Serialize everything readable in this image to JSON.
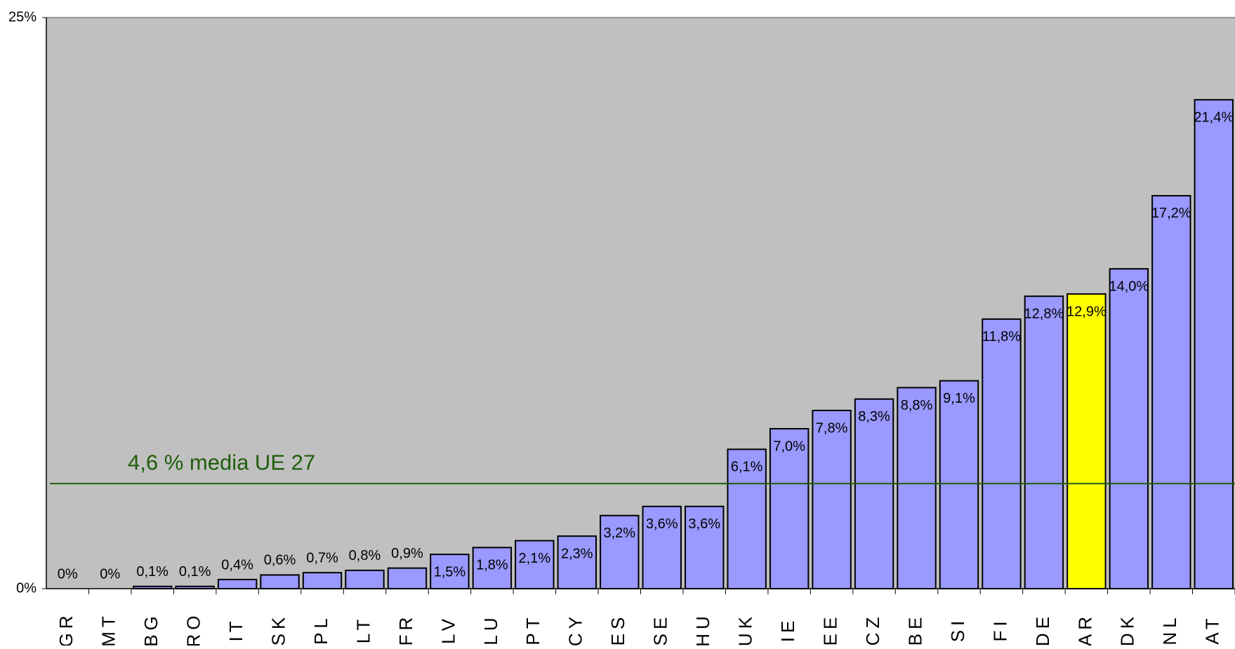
{
  "chart_data": {
    "type": "bar",
    "categories": [
      "GR",
      "MT",
      "BG",
      "RO",
      "IT",
      "SK",
      "PL",
      "LT",
      "FR",
      "LV",
      "LU",
      "PT",
      "CY",
      "ES",
      "SE",
      "HU",
      "UK",
      "IE",
      "EE",
      "CZ",
      "BE",
      "SI",
      "FI",
      "DE",
      "AR",
      "DK",
      "NL",
      "AT"
    ],
    "values": [
      0,
      0,
      0.1,
      0.1,
      0.4,
      0.6,
      0.7,
      0.8,
      0.9,
      1.5,
      1.8,
      2.1,
      2.3,
      3.2,
      3.6,
      3.6,
      6.1,
      7.0,
      7.8,
      8.3,
      8.8,
      9.1,
      11.8,
      12.8,
      12.9,
      14.0,
      17.2,
      21.4
    ],
    "value_labels": [
      "0%",
      "0%",
      "0,1%",
      "0,1%",
      "0,4%",
      "0,6%",
      "0,7%",
      "0,8%",
      "0,9%",
      "1,5%",
      "1,8%",
      "2,1%",
      "2,3%",
      "3,2%",
      "3,6%",
      "3,6%",
      "6,1%",
      "7,0%",
      "7,8%",
      "8,3%",
      "8,8%",
      "9,1%",
      "11,8%",
      "12,8%",
      "12,9%",
      "14,0%",
      "17,2%",
      "21,4%"
    ],
    "colors": [
      "#9999ff",
      "#9999ff",
      "#9999ff",
      "#9999ff",
      "#9999ff",
      "#9999ff",
      "#9999ff",
      "#9999ff",
      "#9999ff",
      "#9999ff",
      "#9999ff",
      "#9999ff",
      "#9999ff",
      "#9999ff",
      "#9999ff",
      "#9999ff",
      "#9999ff",
      "#9999ff",
      "#9999ff",
      "#9999ff",
      "#9999ff",
      "#9999ff",
      "#9999ff",
      "#9999ff",
      "#ffff00",
      "#9999ff",
      "#9999ff",
      "#9999ff"
    ],
    "ylim": [
      0,
      25
    ],
    "yticks": [
      {
        "value": 0,
        "label": "0%"
      },
      {
        "value": 25,
        "label": "25%"
      }
    ],
    "reference_line": {
      "value": 4.6,
      "label": "4,6 % media UE 27",
      "color": "#1e5e0a"
    },
    "background": "#c0c0c0"
  }
}
